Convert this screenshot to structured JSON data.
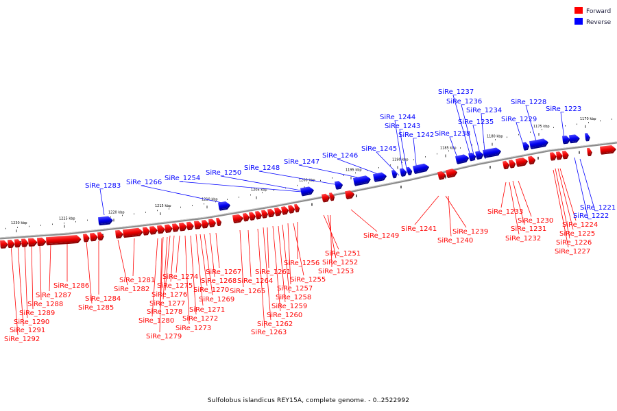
{
  "legend": {
    "forward": {
      "label": "Forward",
      "color": "#ff0000"
    },
    "reverse": {
      "label": "Reverse",
      "color": "#0000ff"
    }
  },
  "caption": "Sulfolobus islandicus REY15A, complete genome. - 0..2522992",
  "scale_labels": [
    "1170 kbp",
    "1175 kbp",
    "1180 kbp",
    "1185 kbp",
    "1190 kbp",
    "1195 kbp",
    "1200 kbp",
    "1205 kbp",
    "1210 kbp",
    "1215 kbp",
    "1220 kbp",
    "1225 kbp",
    "1230 kbp"
  ],
  "reverse_genes": [
    "SiRe_1221",
    "SiRe_1222",
    "SiRe_1223",
    "SiRe_1228",
    "SiRe_1229",
    "SiRe_1234",
    "SiRe_1235",
    "SiRe_1236",
    "SiRe_1237",
    "SiRe_1238",
    "SiRe_1242",
    "SiRe_1243",
    "SiRe_1244",
    "SiRe_1245",
    "SiRe_1246",
    "SiRe_1247",
    "SiRe_1248",
    "SiRe_1250",
    "SiRe_1254",
    "SiRe_1266",
    "SiRe_1283"
  ],
  "forward_genes": [
    "SiRe_1224",
    "SiRe_1225",
    "SiRe_1226",
    "SiRe_1227",
    "SiRe_1230",
    "SiRe_1231",
    "SiRe_1232",
    "SiRe_1233",
    "SiRe_1239",
    "SiRe_1240",
    "SiRe_1241",
    "SiRe_1249",
    "SiRe_1251",
    "SiRe_1252",
    "SiRe_1253",
    "SiRe_1255",
    "SiRe_1256",
    "SiRe_1257",
    "SiRe_1258",
    "SiRe_1259",
    "SiRe_1260",
    "SiRe_1261",
    "SiRe_1262",
    "SiRe_1263",
    "SiRe_1264",
    "SiRe_1265",
    "SiRe_1267",
    "SiRe_1268",
    "SiRe_1269",
    "SiRe_1270",
    "SiRe_1271",
    "SiRe_1272",
    "SiRe_1273",
    "SiRe_1274",
    "SiRe_1275",
    "SiRe_1276",
    "SiRe_1277",
    "SiRe_1278",
    "SiRe_1279",
    "SiRe_1280",
    "SiRe_1281",
    "SiRe_1282",
    "SiRe_1284",
    "SiRe_1285",
    "SiRe_1286",
    "SiRe_1287",
    "SiRe_1288",
    "SiRe_1289",
    "SiRe_1290",
    "SiRe_1291",
    "SiRe_1292"
  ]
}
